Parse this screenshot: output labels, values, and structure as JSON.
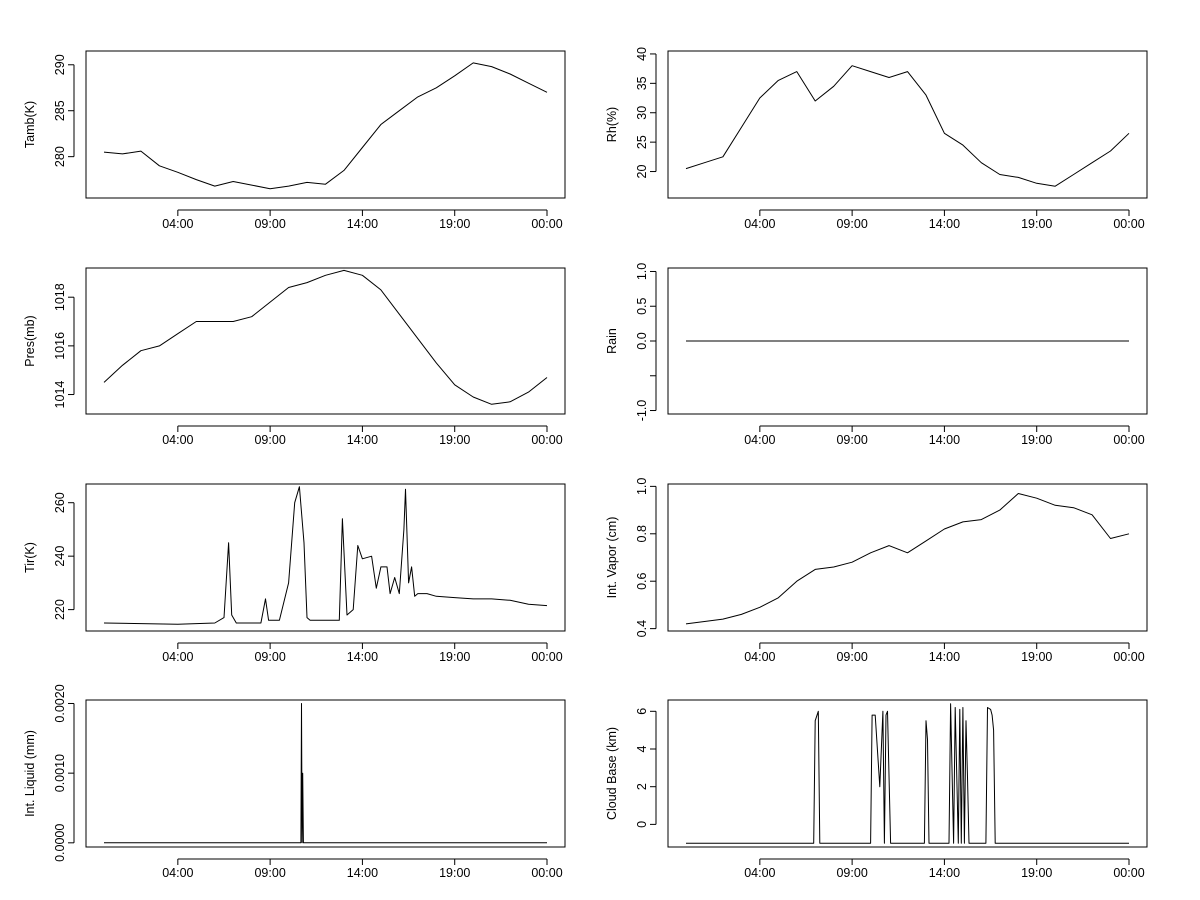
{
  "chart_data": [
    {
      "type": "line",
      "title": "",
      "xlabel": "",
      "ylabel": "Tamb(K)",
      "x_ticks": [
        "04:00",
        "09:00",
        "14:00",
        "19:00",
        "00:00"
      ],
      "y_ticks": [
        280,
        285,
        290
      ],
      "xlim": [
        "00:00",
        "24:00"
      ],
      "ylim": [
        275.5,
        291.5
      ],
      "grid": false,
      "series": [
        {
          "x": [
            "00:00",
            "01:00",
            "02:00",
            "03:00",
            "04:00",
            "05:00",
            "06:00",
            "07:00",
            "08:00",
            "09:00",
            "10:00",
            "11:00",
            "12:00",
            "13:00",
            "14:00",
            "15:00",
            "16:00",
            "17:00",
            "18:00",
            "19:00",
            "20:00",
            "21:00",
            "22:00",
            "23:00",
            "24:00"
          ],
          "values": [
            280.5,
            280.3,
            280.6,
            279.0,
            278.3,
            277.5,
            276.8,
            277.3,
            276.9,
            276.5,
            276.8,
            277.2,
            277.0,
            278.5,
            281.0,
            283.5,
            285.0,
            286.5,
            287.5,
            288.8,
            290.2,
            289.8,
            289.0,
            288.0,
            287.0
          ]
        }
      ]
    },
    {
      "type": "line",
      "title": "",
      "xlabel": "",
      "ylabel": "Rh(%)",
      "x_ticks": [
        "04:00",
        "09:00",
        "14:00",
        "19:00",
        "00:00"
      ],
      "y_ticks": [
        20,
        25,
        30,
        35,
        40
      ],
      "xlim": [
        "00:00",
        "24:00"
      ],
      "ylim": [
        15.5,
        40.5
      ],
      "grid": false,
      "series": [
        {
          "x": [
            "00:00",
            "01:00",
            "02:00",
            "03:00",
            "04:00",
            "05:00",
            "06:00",
            "07:00",
            "08:00",
            "09:00",
            "10:00",
            "11:00",
            "12:00",
            "13:00",
            "14:00",
            "15:00",
            "16:00",
            "17:00",
            "18:00",
            "19:00",
            "20:00",
            "21:00",
            "22:00",
            "23:00",
            "24:00"
          ],
          "values": [
            20.5,
            21.5,
            22.5,
            27.5,
            32.5,
            35.5,
            37.0,
            32.0,
            34.5,
            38.0,
            37.0,
            36.0,
            37.0,
            33.0,
            26.5,
            24.5,
            21.5,
            19.5,
            19.0,
            18.0,
            17.5,
            19.5,
            21.5,
            23.5,
            26.5
          ]
        }
      ]
    },
    {
      "type": "line",
      "title": "",
      "xlabel": "",
      "ylabel": "Pres(mb)",
      "x_ticks": [
        "04:00",
        "09:00",
        "14:00",
        "19:00",
        "00:00"
      ],
      "y_ticks": [
        1014,
        1016,
        1018
      ],
      "xlim": [
        "00:00",
        "24:00"
      ],
      "ylim": [
        1013.2,
        1019.2
      ],
      "grid": false,
      "series": [
        {
          "x": [
            "00:00",
            "01:00",
            "02:00",
            "03:00",
            "04:00",
            "05:00",
            "06:00",
            "07:00",
            "08:00",
            "09:00",
            "10:00",
            "11:00",
            "12:00",
            "13:00",
            "14:00",
            "15:00",
            "16:00",
            "17:00",
            "18:00",
            "19:00",
            "20:00",
            "21:00",
            "22:00",
            "23:00",
            "24:00"
          ],
          "values": [
            1014.5,
            1015.2,
            1015.8,
            1016.0,
            1016.5,
            1017.0,
            1017.0,
            1017.0,
            1017.2,
            1017.8,
            1018.4,
            1018.6,
            1018.9,
            1019.1,
            1018.9,
            1018.3,
            1017.3,
            1016.3,
            1015.3,
            1014.4,
            1013.9,
            1013.6,
            1013.7,
            1014.1,
            1014.7
          ]
        }
      ]
    },
    {
      "type": "line",
      "title": "",
      "xlabel": "",
      "ylabel": "Rain",
      "x_ticks": [
        "04:00",
        "09:00",
        "14:00",
        "19:00",
        "00:00"
      ],
      "y_ticks": [
        "-1.0",
        "",
        "0.0",
        "0.5",
        "1.0"
      ],
      "xlim": [
        "00:00",
        "24:00"
      ],
      "ylim": [
        -1.05,
        1.05
      ],
      "grid": false,
      "series": [
        {
          "x": [
            "00:00",
            "24:00"
          ],
          "values": [
            0,
            0
          ]
        }
      ]
    },
    {
      "type": "line",
      "title": "",
      "xlabel": "",
      "ylabel": "Tir(K)",
      "x_ticks": [
        "04:00",
        "09:00",
        "14:00",
        "19:00",
        "00:00"
      ],
      "y_ticks": [
        220,
        240,
        260
      ],
      "xlim": [
        "00:00",
        "24:00"
      ],
      "ylim": [
        212,
        267
      ],
      "grid": false,
      "series": [
        {
          "x": [
            "00:00",
            "04:00",
            "06:00",
            "06:30",
            "06:45",
            "06:55",
            "07:10",
            "08:30",
            "08:45",
            "08:55",
            "09:30",
            "10:00",
            "10:20",
            "10:35",
            "10:50",
            "11:00",
            "11:10",
            "11:30",
            "12:00",
            "12:45",
            "12:55",
            "13:10",
            "13:30",
            "13:45",
            "14:00",
            "14:30",
            "14:45",
            "15:00",
            "15:20",
            "15:30",
            "15:45",
            "16:00",
            "16:15",
            "16:20",
            "16:30",
            "16:40",
            "16:50",
            "17:00",
            "17:30",
            "18:00",
            "19:00",
            "20:00",
            "21:00",
            "22:00",
            "23:00",
            "24:00"
          ],
          "values": [
            215,
            214.5,
            215,
            217,
            245,
            218,
            215,
            215,
            224,
            216,
            216,
            230,
            260,
            266,
            245,
            217,
            216,
            216,
            216,
            216,
            254,
            218,
            220,
            244,
            239,
            240,
            228,
            236,
            236,
            226,
            232,
            226,
            250,
            265,
            230,
            236,
            225,
            226,
            226,
            225,
            224.5,
            224,
            224,
            223.5,
            222,
            221.5
          ]
        }
      ]
    },
    {
      "type": "line",
      "title": "",
      "xlabel": "",
      "ylabel": "Int. Vapor (cm)",
      "x_ticks": [
        "04:00",
        "09:00",
        "14:00",
        "19:00",
        "00:00"
      ],
      "y_ticks": [
        "0.4",
        "0.6",
        "0.8",
        "1.0"
      ],
      "xlim": [
        "00:00",
        "24:00"
      ],
      "ylim": [
        0.39,
        1.01
      ],
      "grid": false,
      "series": [
        {
          "x": [
            "00:00",
            "01:00",
            "02:00",
            "03:00",
            "04:00",
            "05:00",
            "06:00",
            "07:00",
            "08:00",
            "09:00",
            "10:00",
            "11:00",
            "12:00",
            "13:00",
            "14:00",
            "15:00",
            "16:00",
            "17:00",
            "18:00",
            "19:00",
            "20:00",
            "21:00",
            "22:00",
            "23:00",
            "24:00"
          ],
          "values": [
            0.42,
            0.43,
            0.44,
            0.46,
            0.49,
            0.53,
            0.6,
            0.65,
            0.66,
            0.68,
            0.72,
            0.75,
            0.72,
            0.77,
            0.82,
            0.85,
            0.86,
            0.9,
            0.97,
            0.95,
            0.92,
            0.91,
            0.88,
            0.78,
            0.8
          ]
        }
      ]
    },
    {
      "type": "line",
      "title": "",
      "xlabel": "",
      "ylabel": "Int. Liquid (mm)",
      "x_ticks": [
        "04:00",
        "09:00",
        "14:00",
        "19:00",
        "00:00"
      ],
      "y_ticks": [
        "0.0000",
        "0.0010",
        "0.0020"
      ],
      "xlim": [
        "00:00",
        "24:00"
      ],
      "ylim": [
        -6e-05,
        0.00205
      ],
      "grid": false,
      "series": [
        {
          "x": [
            "00:00",
            "10:40",
            "10:42",
            "10:44",
            "10:46",
            "10:48",
            "10:50",
            "24:00"
          ],
          "values": [
            0,
            0,
            0.002,
            0,
            0.001,
            0,
            0,
            0
          ]
        }
      ]
    },
    {
      "type": "line",
      "title": "",
      "xlabel": "",
      "ylabel": "Cloud Base (km)",
      "x_ticks": [
        "04:00",
        "09:00",
        "14:00",
        "19:00",
        "00:00"
      ],
      "y_ticks": [
        0,
        2,
        4,
        6
      ],
      "xlim": [
        "00:00",
        "24:00"
      ],
      "ylim": [
        -1.2,
        6.6
      ],
      "grid": false,
      "series": [
        {
          "x": [
            "00:00",
            "06:55",
            "07:00",
            "07:10",
            "07:15",
            "10:00",
            "10:05",
            "10:15",
            "10:30",
            "10:40",
            "10:45",
            "10:50",
            "10:55",
            "11:05",
            "11:10",
            "12:55",
            "13:00",
            "13:05",
            "13:10",
            "14:15",
            "14:20",
            "14:30",
            "14:35",
            "14:45",
            "14:50",
            "14:55",
            "15:00",
            "15:05",
            "15:10",
            "15:15",
            "15:20",
            "16:15",
            "16:20",
            "16:30",
            "16:35",
            "16:40",
            "16:45",
            "24:00"
          ],
          "values": [
            -1,
            -1,
            5.5,
            6,
            -1,
            -1,
            5.8,
            5.8,
            2,
            6,
            -1,
            5.8,
            6,
            -1,
            -1,
            -1,
            5.5,
            4.5,
            -1,
            -1,
            6.4,
            -1,
            6.2,
            -1,
            6.1,
            -1,
            6.2,
            -1,
            5.5,
            2.5,
            -1,
            -1,
            6.2,
            6.1,
            5.8,
            5,
            -1,
            -1
          ]
        }
      ]
    }
  ]
}
